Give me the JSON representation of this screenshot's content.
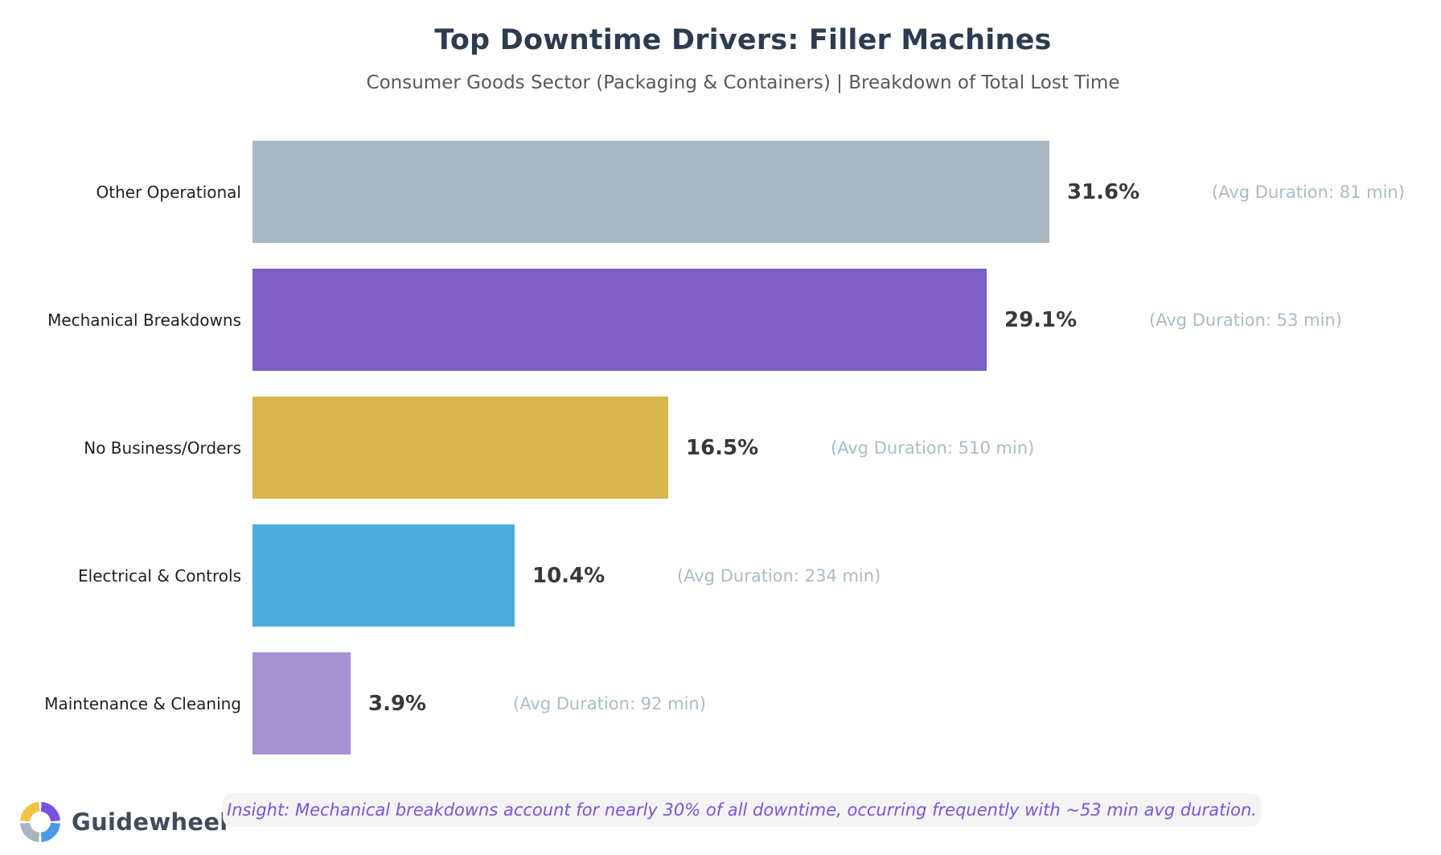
{
  "header": {
    "title": "Top Downtime Drivers: Filler Machines",
    "subtitle": "Consumer Goods Sector (Packaging & Containers) | Breakdown of Total Lost Time"
  },
  "chart_data": {
    "type": "bar",
    "orientation": "horizontal",
    "title": "Top Downtime Drivers: Filler Machines",
    "subtitle": "Consumer Goods Sector (Packaging & Containers) | Breakdown of Total Lost Time",
    "categories": [
      "Other Operational",
      "Mechanical Breakdowns",
      "No Business/Orders",
      "Electrical & Controls",
      "Maintenance & Cleaning"
    ],
    "values": [
      31.6,
      29.1,
      16.5,
      10.4,
      3.9
    ],
    "value_labels": [
      "31.6%",
      "29.1%",
      "16.5%",
      "10.4%",
      "3.9%"
    ],
    "avg_duration_min": [
      81,
      53,
      510,
      234,
      92
    ],
    "annotations": [
      "(Avg Duration: 81 min)",
      "(Avg Duration: 53 min)",
      "(Avg Duration: 510 min)",
      "(Avg Duration: 234 min)",
      "(Avg Duration: 92 min)"
    ],
    "bar_colors": [
      "#a9b7c3",
      "#7d5fc5",
      "#d7b74e",
      "#4bacdb",
      "#a492d1"
    ],
    "xlim": [
      0,
      33
    ],
    "grid": false,
    "legend": false,
    "unit": "% of total lost time"
  },
  "footer": {
    "brand": "Guidewheel",
    "insight": "Insight: Mechanical breakdowns account for nearly 30% of all downtime, occurring frequently with ~53 min avg duration.",
    "insight_text_color": "#7a55d8",
    "logo_colors": {
      "top_right": "#7a52dd",
      "bottom_right": "#4a9ae8",
      "bottom_left": "#a9b6c0",
      "top_left": "#f2c243"
    }
  }
}
